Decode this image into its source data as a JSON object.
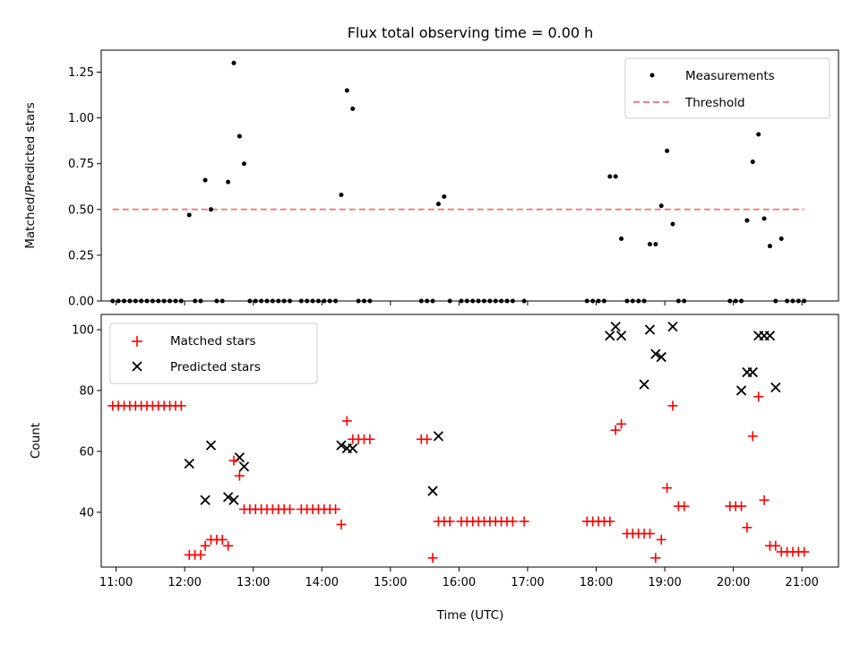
{
  "chart_data": [
    {
      "type": "scatter",
      "title": "Flux total observing time = 0.00 h",
      "xlabel": "",
      "ylabel": "Matched/Predicted stars",
      "ylim": [
        0,
        1.37
      ],
      "yticks": [
        0,
        0.25,
        0.5,
        0.75,
        1.0,
        1.25
      ],
      "ytick_labels": [
        "0.00",
        "0.25",
        "0.50",
        "0.75",
        "1.00",
        "1.25"
      ],
      "xlim": [
        "10:47",
        "21:32"
      ],
      "legend": {
        "placement": "top-right",
        "entries": [
          "Measurements",
          "Threshold"
        ]
      },
      "series": [
        {
          "name": "Measurements",
          "marker": "dot",
          "color": "#000000",
          "x": [
            "10:57",
            "11:02",
            "11:07",
            "11:12",
            "11:17",
            "11:22",
            "11:27",
            "11:32",
            "11:37",
            "11:42",
            "11:47",
            "11:52",
            "11:57",
            "12:04",
            "12:09",
            "12:14",
            "12:18",
            "12:23",
            "12:28",
            "12:33",
            "12:38",
            "12:43",
            "12:48",
            "12:52",
            "12:57",
            "13:02",
            "13:07",
            "13:12",
            "13:17",
            "13:22",
            "13:27",
            "13:32",
            "13:42",
            "13:47",
            "13:52",
            "13:57",
            "14:02",
            "14:07",
            "14:12",
            "14:17",
            "14:22",
            "14:27",
            "14:32",
            "14:37",
            "14:42",
            "15:27",
            "15:32",
            "15:37",
            "15:42",
            "15:47",
            "15:52",
            "16:02",
            "16:07",
            "16:12",
            "16:17",
            "16:22",
            "16:27",
            "16:32",
            "16:37",
            "16:42",
            "16:47",
            "16:57",
            "17:52",
            "17:57",
            "18:02",
            "18:07",
            "18:12",
            "18:17",
            "18:22",
            "18:27",
            "18:32",
            "18:37",
            "18:42",
            "18:47",
            "18:52",
            "18:57",
            "19:02",
            "19:07",
            "19:12",
            "19:17",
            "19:57",
            "20:02",
            "20:07",
            "20:12",
            "20:17",
            "20:22",
            "20:27",
            "20:32",
            "20:37",
            "20:42",
            "20:47",
            "20:52",
            "20:57",
            "21:02"
          ],
          "y": [
            0,
            0,
            0,
            0,
            0,
            0,
            0,
            0,
            0,
            0,
            0,
            0,
            0,
            0.47,
            0,
            0,
            0.66,
            0.5,
            0,
            0,
            0.65,
            1.3,
            0.9,
            0.75,
            0,
            0,
            0,
            0,
            0,
            0,
            0,
            0,
            0,
            0,
            0,
            0,
            0,
            0,
            0,
            0.58,
            1.15,
            1.05,
            0,
            0,
            0,
            0,
            0,
            0,
            0.53,
            0.57,
            0,
            0,
            0,
            0,
            0,
            0,
            0,
            0,
            0,
            0,
            0,
            0,
            0,
            0,
            0,
            0,
            0.68,
            0.68,
            0.34,
            0,
            0,
            0,
            0,
            0.31,
            0.31,
            0.52,
            0.82,
            0.42,
            0,
            0,
            0,
            0,
            0,
            0.44,
            0.76,
            0.91,
            0.45,
            0.3,
            0,
            0.34,
            0,
            0,
            0,
            0
          ]
        },
        {
          "name": "Threshold",
          "marker": "dashed-line",
          "color": "#f08080",
          "x": [
            "10:57",
            "21:02"
          ],
          "y": [
            0.5,
            0.5
          ]
        }
      ]
    },
    {
      "type": "scatter",
      "title": "",
      "xlabel": "Time (UTC)",
      "ylabel": "Count",
      "ylim": [
        22,
        105
      ],
      "yticks": [
        40,
        60,
        80,
        100
      ],
      "ytick_labels": [
        "40",
        "60",
        "80",
        "100"
      ],
      "xlim": [
        "10:47",
        "21:32"
      ],
      "xticks": [
        "11:00",
        "12:00",
        "13:00",
        "14:00",
        "15:00",
        "16:00",
        "17:00",
        "18:00",
        "19:00",
        "20:00",
        "21:00"
      ],
      "legend": {
        "placement": "top-left",
        "entries": [
          "Matched stars",
          "Predicted stars"
        ]
      },
      "series": [
        {
          "name": "Matched stars",
          "marker": "plus",
          "color": "#ff0000",
          "x": [
            "10:57",
            "11:02",
            "11:07",
            "11:12",
            "11:17",
            "11:22",
            "11:27",
            "11:32",
            "11:37",
            "11:42",
            "11:47",
            "11:52",
            "11:57",
            "12:04",
            "12:09",
            "12:14",
            "12:18",
            "12:23",
            "12:28",
            "12:33",
            "12:38",
            "12:43",
            "12:48",
            "12:52",
            "12:57",
            "13:02",
            "13:07",
            "13:12",
            "13:17",
            "13:22",
            "13:27",
            "13:32",
            "13:42",
            "13:47",
            "13:52",
            "13:57",
            "14:02",
            "14:07",
            "14:12",
            "14:17",
            "14:22",
            "14:27",
            "14:32",
            "14:37",
            "14:42",
            "15:27",
            "15:32",
            "15:37",
            "15:42",
            "15:47",
            "15:52",
            "16:02",
            "16:07",
            "16:12",
            "16:17",
            "16:22",
            "16:27",
            "16:32",
            "16:37",
            "16:42",
            "16:47",
            "16:57",
            "17:52",
            "17:57",
            "18:02",
            "18:07",
            "18:12",
            "18:17",
            "18:22",
            "18:27",
            "18:32",
            "18:37",
            "18:42",
            "18:47",
            "18:52",
            "18:57",
            "19:02",
            "19:07",
            "19:12",
            "19:17",
            "19:57",
            "20:02",
            "20:07",
            "20:12",
            "20:17",
            "20:22",
            "20:27",
            "20:32",
            "20:37",
            "20:42",
            "20:47",
            "20:52",
            "20:57",
            "21:02"
          ],
          "y": [
            75,
            75,
            75,
            75,
            75,
            75,
            75,
            75,
            75,
            75,
            75,
            75,
            75,
            26,
            26,
            26,
            29,
            31,
            31,
            31,
            29,
            57,
            52,
            41,
            41,
            41,
            41,
            41,
            41,
            41,
            41,
            41,
            41,
            41,
            41,
            41,
            41,
            41,
            41,
            36,
            70,
            64,
            64,
            64,
            64,
            64,
            64,
            25,
            37,
            37,
            37,
            37,
            37,
            37,
            37,
            37,
            37,
            37,
            37,
            37,
            37,
            37,
            37,
            37,
            37,
            37,
            37,
            67,
            69,
            33,
            33,
            33,
            33,
            33,
            25,
            31,
            48,
            75,
            42,
            42,
            42,
            42,
            42,
            35,
            65,
            78,
            44,
            29,
            29,
            27,
            27,
            27,
            27,
            27
          ]
        },
        {
          "name": "Predicted stars",
          "marker": "x",
          "color": "#000000",
          "x": [
            "12:04",
            "12:18",
            "12:23",
            "12:38",
            "12:43",
            "12:48",
            "12:52",
            "14:17",
            "14:22",
            "14:27",
            "15:37",
            "15:42",
            "18:12",
            "18:17",
            "18:22",
            "18:42",
            "18:47",
            "18:52",
            "18:57",
            "19:07",
            "20:07",
            "20:12",
            "20:17",
            "20:22",
            "20:27",
            "20:32",
            "20:37"
          ],
          "y": [
            56,
            44,
            62,
            45,
            44,
            58,
            55,
            62,
            61,
            61,
            47,
            65,
            98,
            101,
            98,
            82,
            100,
            92,
            91,
            101,
            80,
            86,
            86,
            98,
            98,
            98,
            81
          ]
        }
      ]
    }
  ]
}
